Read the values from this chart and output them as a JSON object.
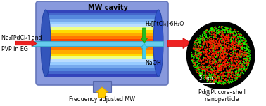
{
  "bg_color": "#ffffff",
  "mw_cavity_label": "MW cavity",
  "freq_label": "Frequency adjusted MW",
  "reagent_left_line1": "Na₂[PdCl₄] and",
  "reagent_left_line2": "PVP in EG",
  "reagent_top_label": "H₂[PtCl₆]·6H₂O",
  "reagent_bottom_label": "NaOH",
  "product_label": "Pd@Pt core–shell\nnanoparticle",
  "scalebar_label": "5 nm",
  "band_colors": [
    "#3344bb",
    "#4466cc",
    "#5588dd",
    "#77aaee",
    "#99ccff",
    "#bbddff",
    "#eeff88",
    "#ffdd00",
    "#ffaa00",
    "#ff7700",
    "#ff4400",
    "#ff2200",
    "#ff4400",
    "#ff7700",
    "#ffaa00",
    "#ffdd00",
    "#eeff88",
    "#bbddff",
    "#99ccff",
    "#77aaee",
    "#5588dd",
    "#4466cc",
    "#3344bb"
  ],
  "outer_color": "#8899dd",
  "outer_edge": "#6677bb",
  "port_color": "#7788cc",
  "tube_color": "#66ccee",
  "tube_edge": "#44aacc"
}
